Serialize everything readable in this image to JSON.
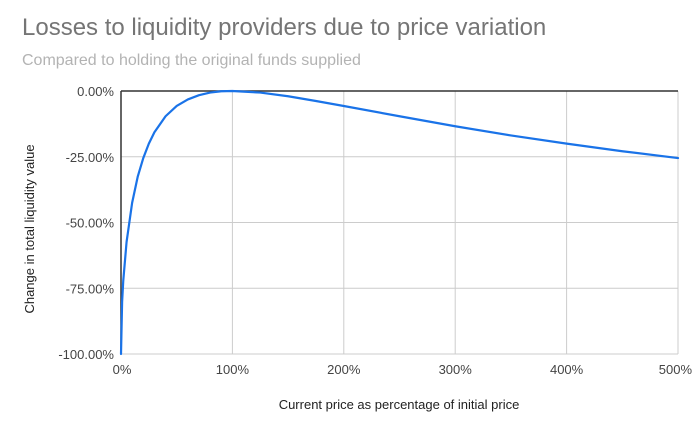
{
  "chart_data": {
    "type": "line",
    "title": "Losses to liquidity providers due to price variation",
    "subtitle": "Compared to holding the original funds supplied",
    "xlabel": "Current price as percentage of initial price",
    "ylabel": "Change in total liquidity value",
    "xlim": [
      0,
      500
    ],
    "ylim": [
      -100,
      0
    ],
    "x_ticks": [
      0,
      100,
      200,
      300,
      400,
      500
    ],
    "x_tick_labels": [
      "0%",
      "100%",
      "200%",
      "300%",
      "400%",
      "500%"
    ],
    "y_ticks": [
      0,
      -25,
      -50,
      -75,
      -100
    ],
    "y_tick_labels": [
      "0.00%",
      "-25.00%",
      "-50.00%",
      "-75.00%",
      "-100.00%"
    ],
    "grid": true,
    "legend": "none",
    "series": [
      {
        "color": "#1a73e8",
        "x": [
          0,
          1,
          2,
          5,
          10,
          15,
          20,
          25,
          30,
          40,
          50,
          60,
          70,
          80,
          90,
          100,
          125,
          150,
          175,
          200,
          250,
          300,
          350,
          400,
          450,
          500
        ],
        "y": [
          -100,
          -80.2,
          -72.3,
          -57.4,
          -42.5,
          -32.6,
          -25.5,
          -20.0,
          -15.7,
          -9.6,
          -5.7,
          -3.2,
          -1.6,
          -0.6,
          -0.1,
          0,
          -0.6,
          -2.0,
          -3.8,
          -5.7,
          -9.6,
          -13.4,
          -16.9,
          -20.0,
          -22.9,
          -25.5
        ]
      }
    ]
  }
}
